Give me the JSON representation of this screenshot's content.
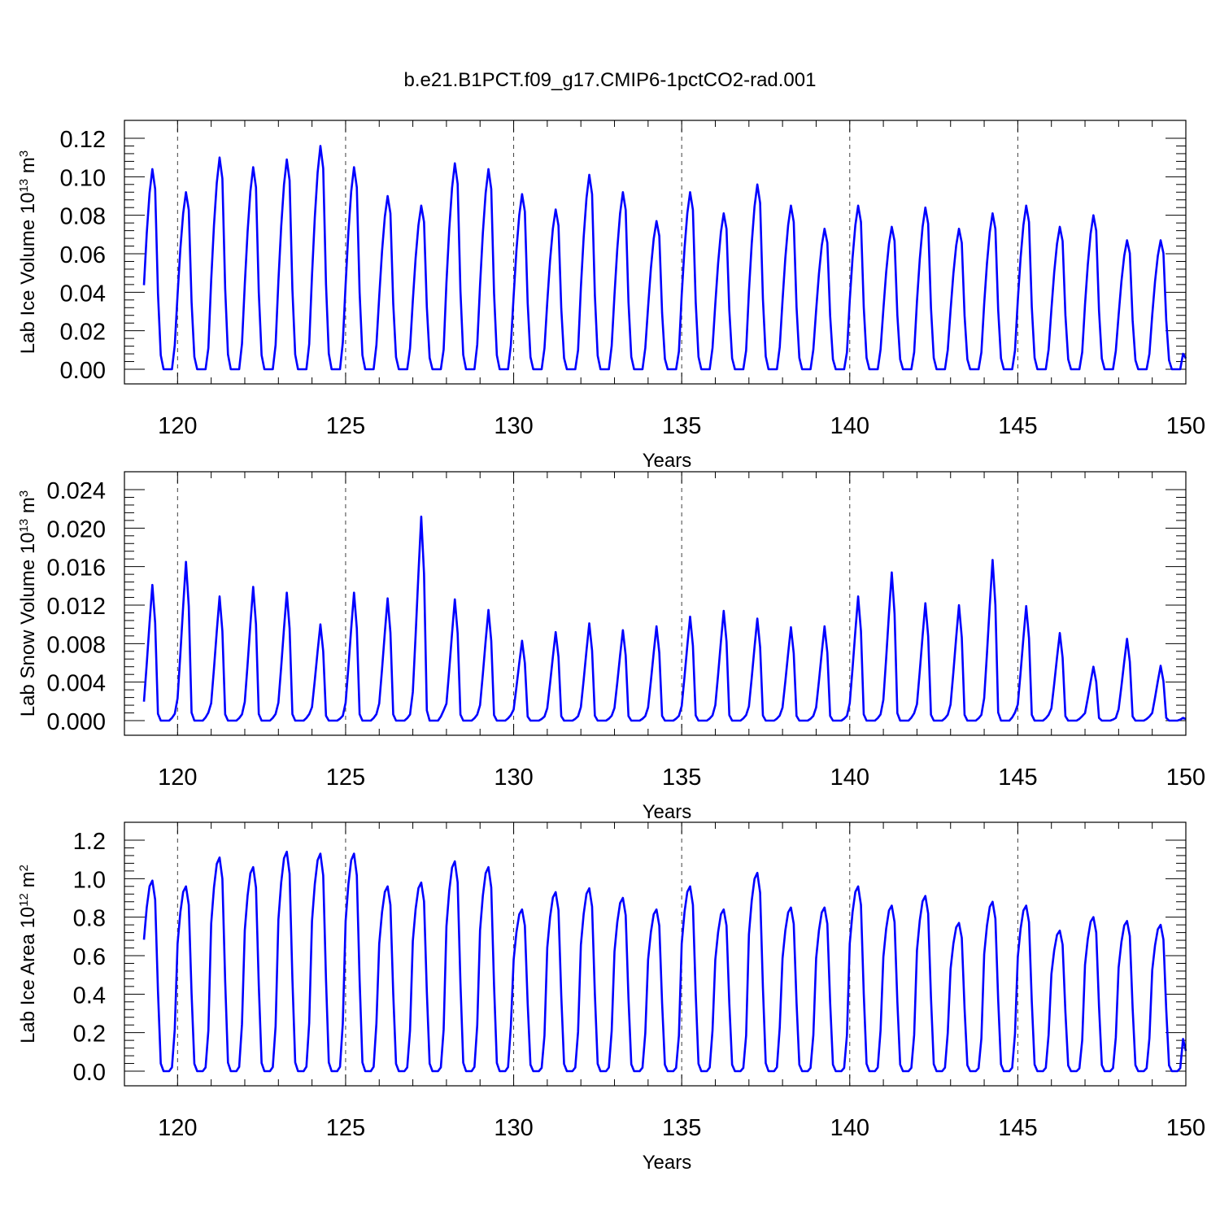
{
  "title": "b.e21.B1PCT.f09_g17.CMIP6-1pctCO2-rad.001",
  "colors": {
    "series": "#0000ff",
    "axes": "#000000",
    "background": "#ffffff"
  },
  "chart_data": [
    {
      "type": "line",
      "title": "",
      "xlabel": "Years",
      "ylabel": "Lab Ice Volume 10^13 m^3",
      "ylabel_base": "Lab Ice Volume 10",
      "ylabel_exp": "13",
      "ylabel_unit": " m",
      "ylabel_unit_exp": "3",
      "xlim": [
        119,
        150
      ],
      "ylim": [
        0,
        0.12
      ],
      "x_ticks": [
        "120",
        "125",
        "130",
        "135",
        "140",
        "145",
        "150"
      ],
      "y_ticks": [
        "0.00",
        "0.02",
        "0.04",
        "0.06",
        "0.08",
        "0.10",
        "0.12"
      ],
      "grid": "vertical dashed at major x ticks",
      "start_year": 119,
      "peaks": [
        0.104,
        0.092,
        0.11,
        0.105,
        0.109,
        0.116,
        0.105,
        0.09,
        0.085,
        0.107,
        0.104,
        0.091,
        0.083,
        0.101,
        0.092,
        0.077,
        0.092,
        0.081,
        0.096,
        0.085,
        0.073,
        0.085,
        0.074,
        0.084,
        0.073,
        0.081,
        0.085,
        0.074,
        0.08,
        0.067,
        0.067
      ],
      "series": [
        {
          "values": []
        }
      ]
    },
    {
      "type": "line",
      "title": "",
      "xlabel": "Years",
      "ylabel": "Lab Snow Volume 10^13 m^3",
      "ylabel_base": "Lab Snow Volume 10",
      "ylabel_exp": "13",
      "ylabel_unit": " m",
      "ylabel_unit_exp": "3",
      "xlim": [
        119,
        150
      ],
      "ylim": [
        0,
        0.024
      ],
      "x_ticks": [
        "120",
        "125",
        "130",
        "135",
        "140",
        "145",
        "150"
      ],
      "y_ticks": [
        "0.000",
        "0.004",
        "0.008",
        "0.012",
        "0.016",
        "0.020",
        "0.024"
      ],
      "grid": "vertical dashed at major x ticks",
      "start_year": 119,
      "peaks": [
        0.0141,
        0.0165,
        0.0129,
        0.0139,
        0.0133,
        0.01,
        0.0133,
        0.0127,
        0.0212,
        0.0126,
        0.0115,
        0.0083,
        0.0092,
        0.0101,
        0.0094,
        0.0098,
        0.0108,
        0.0114,
        0.0106,
        0.0097,
        0.0098,
        0.0129,
        0.0154,
        0.0122,
        0.012,
        0.0167,
        0.0119,
        0.0091,
        0.0056,
        0.0085,
        0.0057
      ],
      "series": [
        {
          "values": []
        }
      ]
    },
    {
      "type": "line",
      "title": "",
      "xlabel": "Years",
      "ylabel": "Lab Ice Area 10^12 m^2",
      "ylabel_base": "Lab Ice Area 10",
      "ylabel_exp": "12",
      "ylabel_unit": " m",
      "ylabel_unit_exp": "2",
      "xlim": [
        119,
        150
      ],
      "ylim": [
        0,
        1.2
      ],
      "x_ticks": [
        "120",
        "125",
        "130",
        "135",
        "140",
        "145",
        "150"
      ],
      "y_ticks": [
        "0.0",
        "0.2",
        "0.4",
        "0.6",
        "0.8",
        "1.0",
        "1.2"
      ],
      "grid": "vertical dashed at major x ticks",
      "start_year": 119,
      "peaks": [
        0.99,
        0.96,
        1.11,
        1.06,
        1.14,
        1.13,
        1.13,
        0.96,
        0.98,
        1.09,
        1.06,
        0.84,
        0.93,
        0.95,
        0.9,
        0.84,
        0.96,
        0.84,
        1.03,
        0.85,
        0.85,
        0.96,
        0.86,
        0.91,
        0.77,
        0.88,
        0.86,
        0.73,
        0.8,
        0.78,
        0.76
      ],
      "series": [
        {
          "values": []
        }
      ]
    }
  ]
}
